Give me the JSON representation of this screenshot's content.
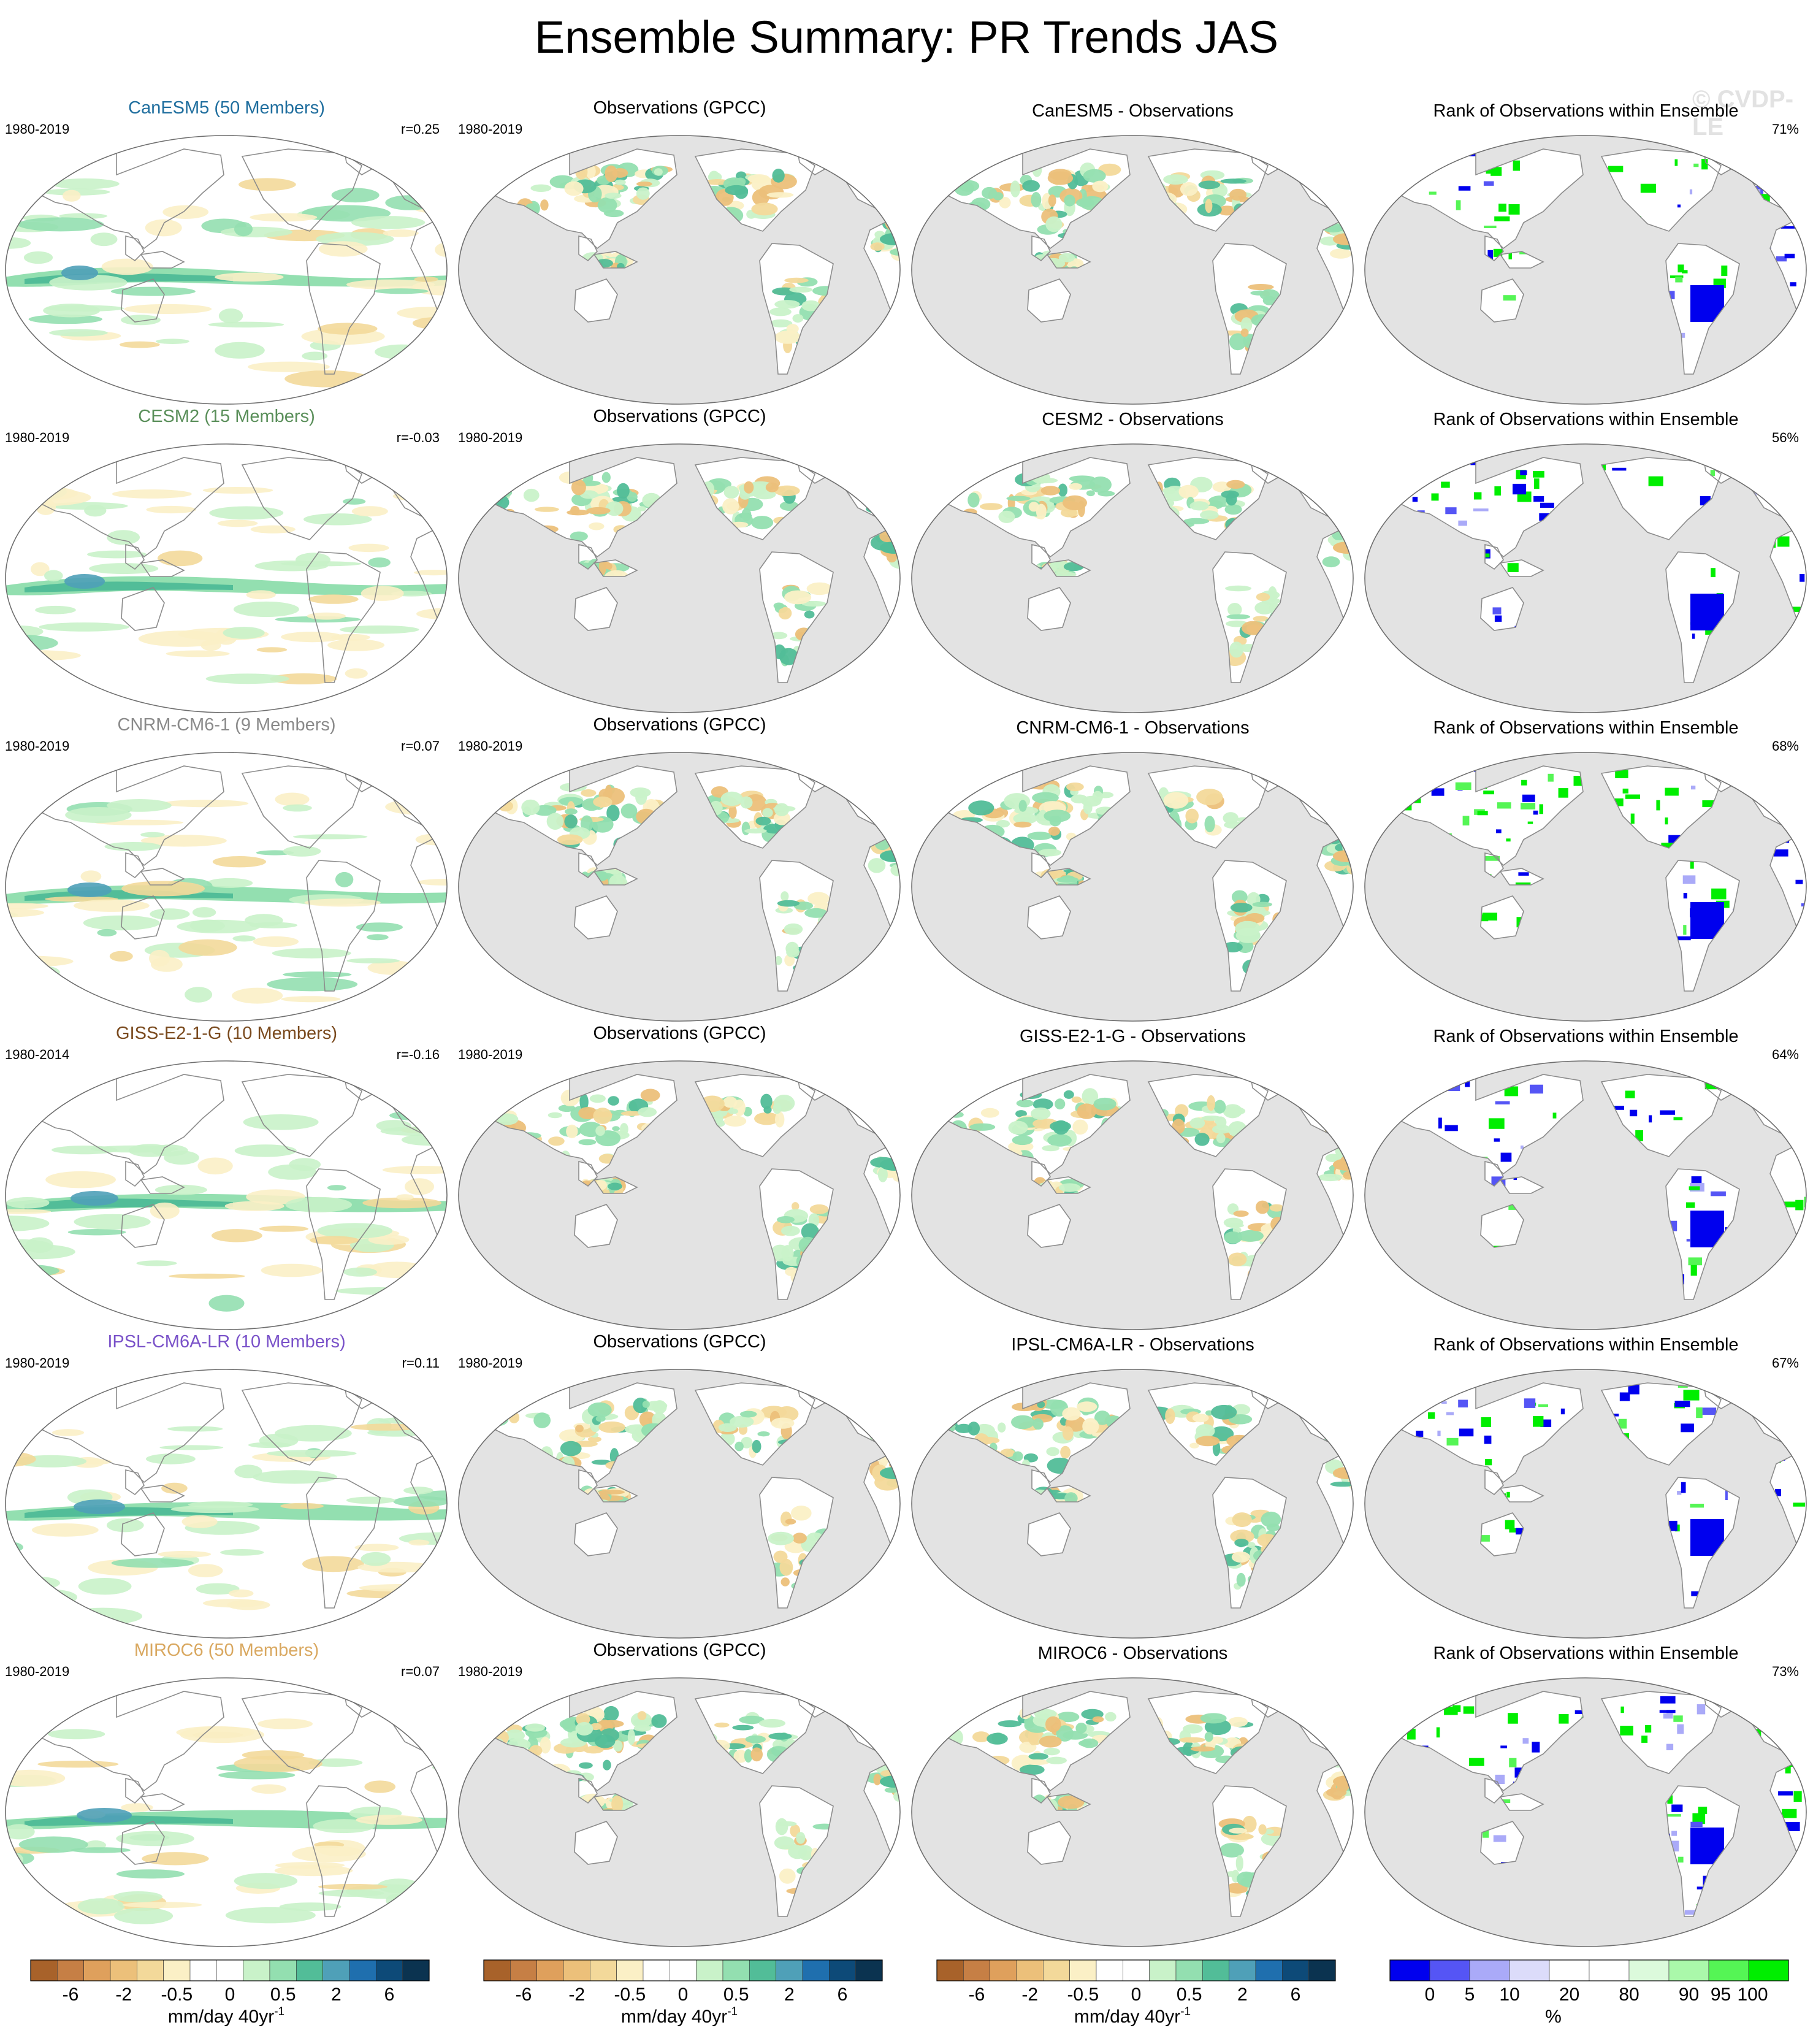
{
  "title": "Ensemble Summary: PR Trends JAS",
  "watermark": "© CVDP-LE",
  "colors": {
    "land_mask": "#e3e3e3",
    "ocean_white": "#ffffff",
    "coast": "#8c8c8c",
    "rank_low": "#0000ee",
    "rank_high": "#00ee00"
  },
  "rows": [
    {
      "model": {
        "title": "CanESM5 (50 Members)",
        "title_color": "#1f6e9e",
        "period": "1980-2019",
        "stat": "r=0.25"
      },
      "obs": {
        "title": "Observations (GPCC)",
        "period": "1980-2019"
      },
      "diff": {
        "title": "CanESM5 - Observations"
      },
      "rank": {
        "title": "Rank of Observations within Ensemble",
        "stat": "71%"
      }
    },
    {
      "model": {
        "title": "CESM2 (15 Members)",
        "title_color": "#5a8f5a",
        "period": "1980-2019",
        "stat": "r=-0.03"
      },
      "obs": {
        "title": "Observations (GPCC)",
        "period": "1980-2019"
      },
      "diff": {
        "title": "CESM2 - Observations"
      },
      "rank": {
        "title": "Rank of Observations within Ensemble",
        "stat": "56%"
      }
    },
    {
      "model": {
        "title": "CNRM-CM6-1 (9 Members)",
        "title_color": "#8a8a8a",
        "period": "1980-2019",
        "stat": "r=0.07"
      },
      "obs": {
        "title": "Observations (GPCC)",
        "period": "1980-2019"
      },
      "diff": {
        "title": "CNRM-CM6-1 - Observations"
      },
      "rank": {
        "title": "Rank of Observations within Ensemble",
        "stat": "68%"
      }
    },
    {
      "model": {
        "title": "GISS-E2-1-G (10 Members)",
        "title_color": "#7a4a1e",
        "period": "1980-2014",
        "stat": "r=-0.16"
      },
      "obs": {
        "title": "Observations (GPCC)",
        "period": "1980-2019"
      },
      "diff": {
        "title": "GISS-E2-1-G - Observations"
      },
      "rank": {
        "title": "Rank of Observations within Ensemble",
        "stat": "64%"
      }
    },
    {
      "model": {
        "title": "IPSL-CM6A-LR (10 Members)",
        "title_color": "#7a52c9",
        "period": "1980-2019",
        "stat": "r=0.11"
      },
      "obs": {
        "title": "Observations (GPCC)",
        "period": "1980-2019"
      },
      "diff": {
        "title": "IPSL-CM6A-LR - Observations"
      },
      "rank": {
        "title": "Rank of Observations within Ensemble",
        "stat": "67%"
      }
    },
    {
      "model": {
        "title": "MIROC6 (50 Members)",
        "title_color": "#d9a860",
        "period": "1980-2019",
        "stat": "r=0.07"
      },
      "obs": {
        "title": "Observations (GPCC)",
        "period": "1980-2019"
      },
      "diff": {
        "title": "MIROC6 - Observations"
      },
      "rank": {
        "title": "Rank of Observations within Ensemble",
        "stat": "73%"
      }
    }
  ],
  "colorbars": {
    "trend": {
      "colors": [
        "#a8622a",
        "#c67f45",
        "#dfa05c",
        "#ecc07a",
        "#f3d99a",
        "#fbf0c6",
        "#ffffff",
        "#ffffff",
        "#c9f2c9",
        "#93dfb0",
        "#52bd98",
        "#4fa0b8",
        "#1f6fae",
        "#0d4a78",
        "#0b3350"
      ],
      "tick_labels": [
        "-6",
        "-2",
        "-0.5",
        "0",
        "0.5",
        "2",
        "6"
      ],
      "label": "mm/day 40yr",
      "label_sup": "-1"
    },
    "rank": {
      "colors": [
        "#0000ee",
        "#5555f5",
        "#aaaaf8",
        "#dcdcfa",
        "#ffffff",
        "#ffffff",
        "#dcfadc",
        "#aaf8aa",
        "#55f555",
        "#00ee00"
      ],
      "tick_labels": [
        "0",
        "5",
        "10",
        "20",
        "80",
        "90",
        "95",
        "100"
      ],
      "label": "%"
    }
  },
  "chart_data": [
    {
      "type": "heatmap",
      "description_title": "Ensemble Summary: PR Trends JAS",
      "projection": "Robinson, Pacific-centered",
      "panels_per_row": [
        "model ensemble-mean trend",
        "Observations (GPCC) trend",
        "model minus observations",
        "rank of observations within ensemble"
      ],
      "trend_levels": [
        -6,
        -4,
        -2,
        -1,
        -0.5,
        -0.25,
        0,
        0.25,
        0.5,
        1,
        2,
        4,
        6
      ],
      "trend_units": "mm/day 40yr-1",
      "rank_levels": [
        0,
        5,
        10,
        20,
        80,
        90,
        95,
        100
      ],
      "rank_units": "%",
      "pattern_correlation": {
        "CanESM5": 0.25,
        "CESM2": -0.03,
        "CNRM-CM6-1": 0.07,
        "GISS-E2-1-G": -0.16,
        "IPSL-CM6A-LR": 0.11,
        "MIROC6": 0.07
      },
      "rank_within_bounds_percent": {
        "CanESM5": 71,
        "CESM2": 56,
        "CNRM-CM6-1": 68,
        "GISS-E2-1-G": 64,
        "IPSL-CM6A-LR": 67,
        "MIROC6": 73
      }
    }
  ]
}
